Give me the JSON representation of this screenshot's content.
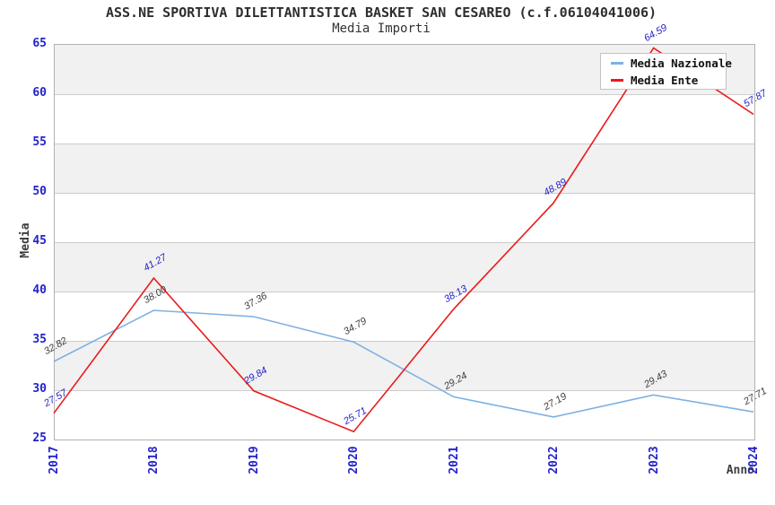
{
  "chart": {
    "title": "ASS.NE SPORTIVA DILETTANTISTICA BASKET SAN CESAREO (c.f.06104041006)",
    "subtitle": "Media Importi"
  },
  "chart_data": {
    "type": "line",
    "x": [
      "2017",
      "2018",
      "2019",
      "2020",
      "2021",
      "2022",
      "2023",
      "2024"
    ],
    "series": [
      {
        "name": "Media Nazionale",
        "color": "#7db1e2",
        "label_color": "#3d3d3d",
        "values": [
          32.82,
          38.0,
          37.36,
          34.79,
          29.24,
          27.19,
          29.43,
          27.71
        ]
      },
      {
        "name": "Media Ente",
        "color": "#ea1a1a",
        "label_color": "#2222cc",
        "values": [
          27.57,
          41.27,
          29.84,
          25.71,
          38.13,
          48.89,
          64.59,
          57.87
        ]
      }
    ],
    "xlabel": "Anno",
    "ylabel": "Media",
    "ylim": [
      25,
      65
    ],
    "ytick_step": 5,
    "yticks": [
      25,
      30,
      35,
      40,
      45,
      50,
      55,
      60,
      65
    ],
    "legend_position": "top-right",
    "grid": "horizontal",
    "band_fill": true,
    "band_color": "#f1f1f1",
    "gridline_color": "#cccccc",
    "tick_label_color": "#2222cc"
  }
}
